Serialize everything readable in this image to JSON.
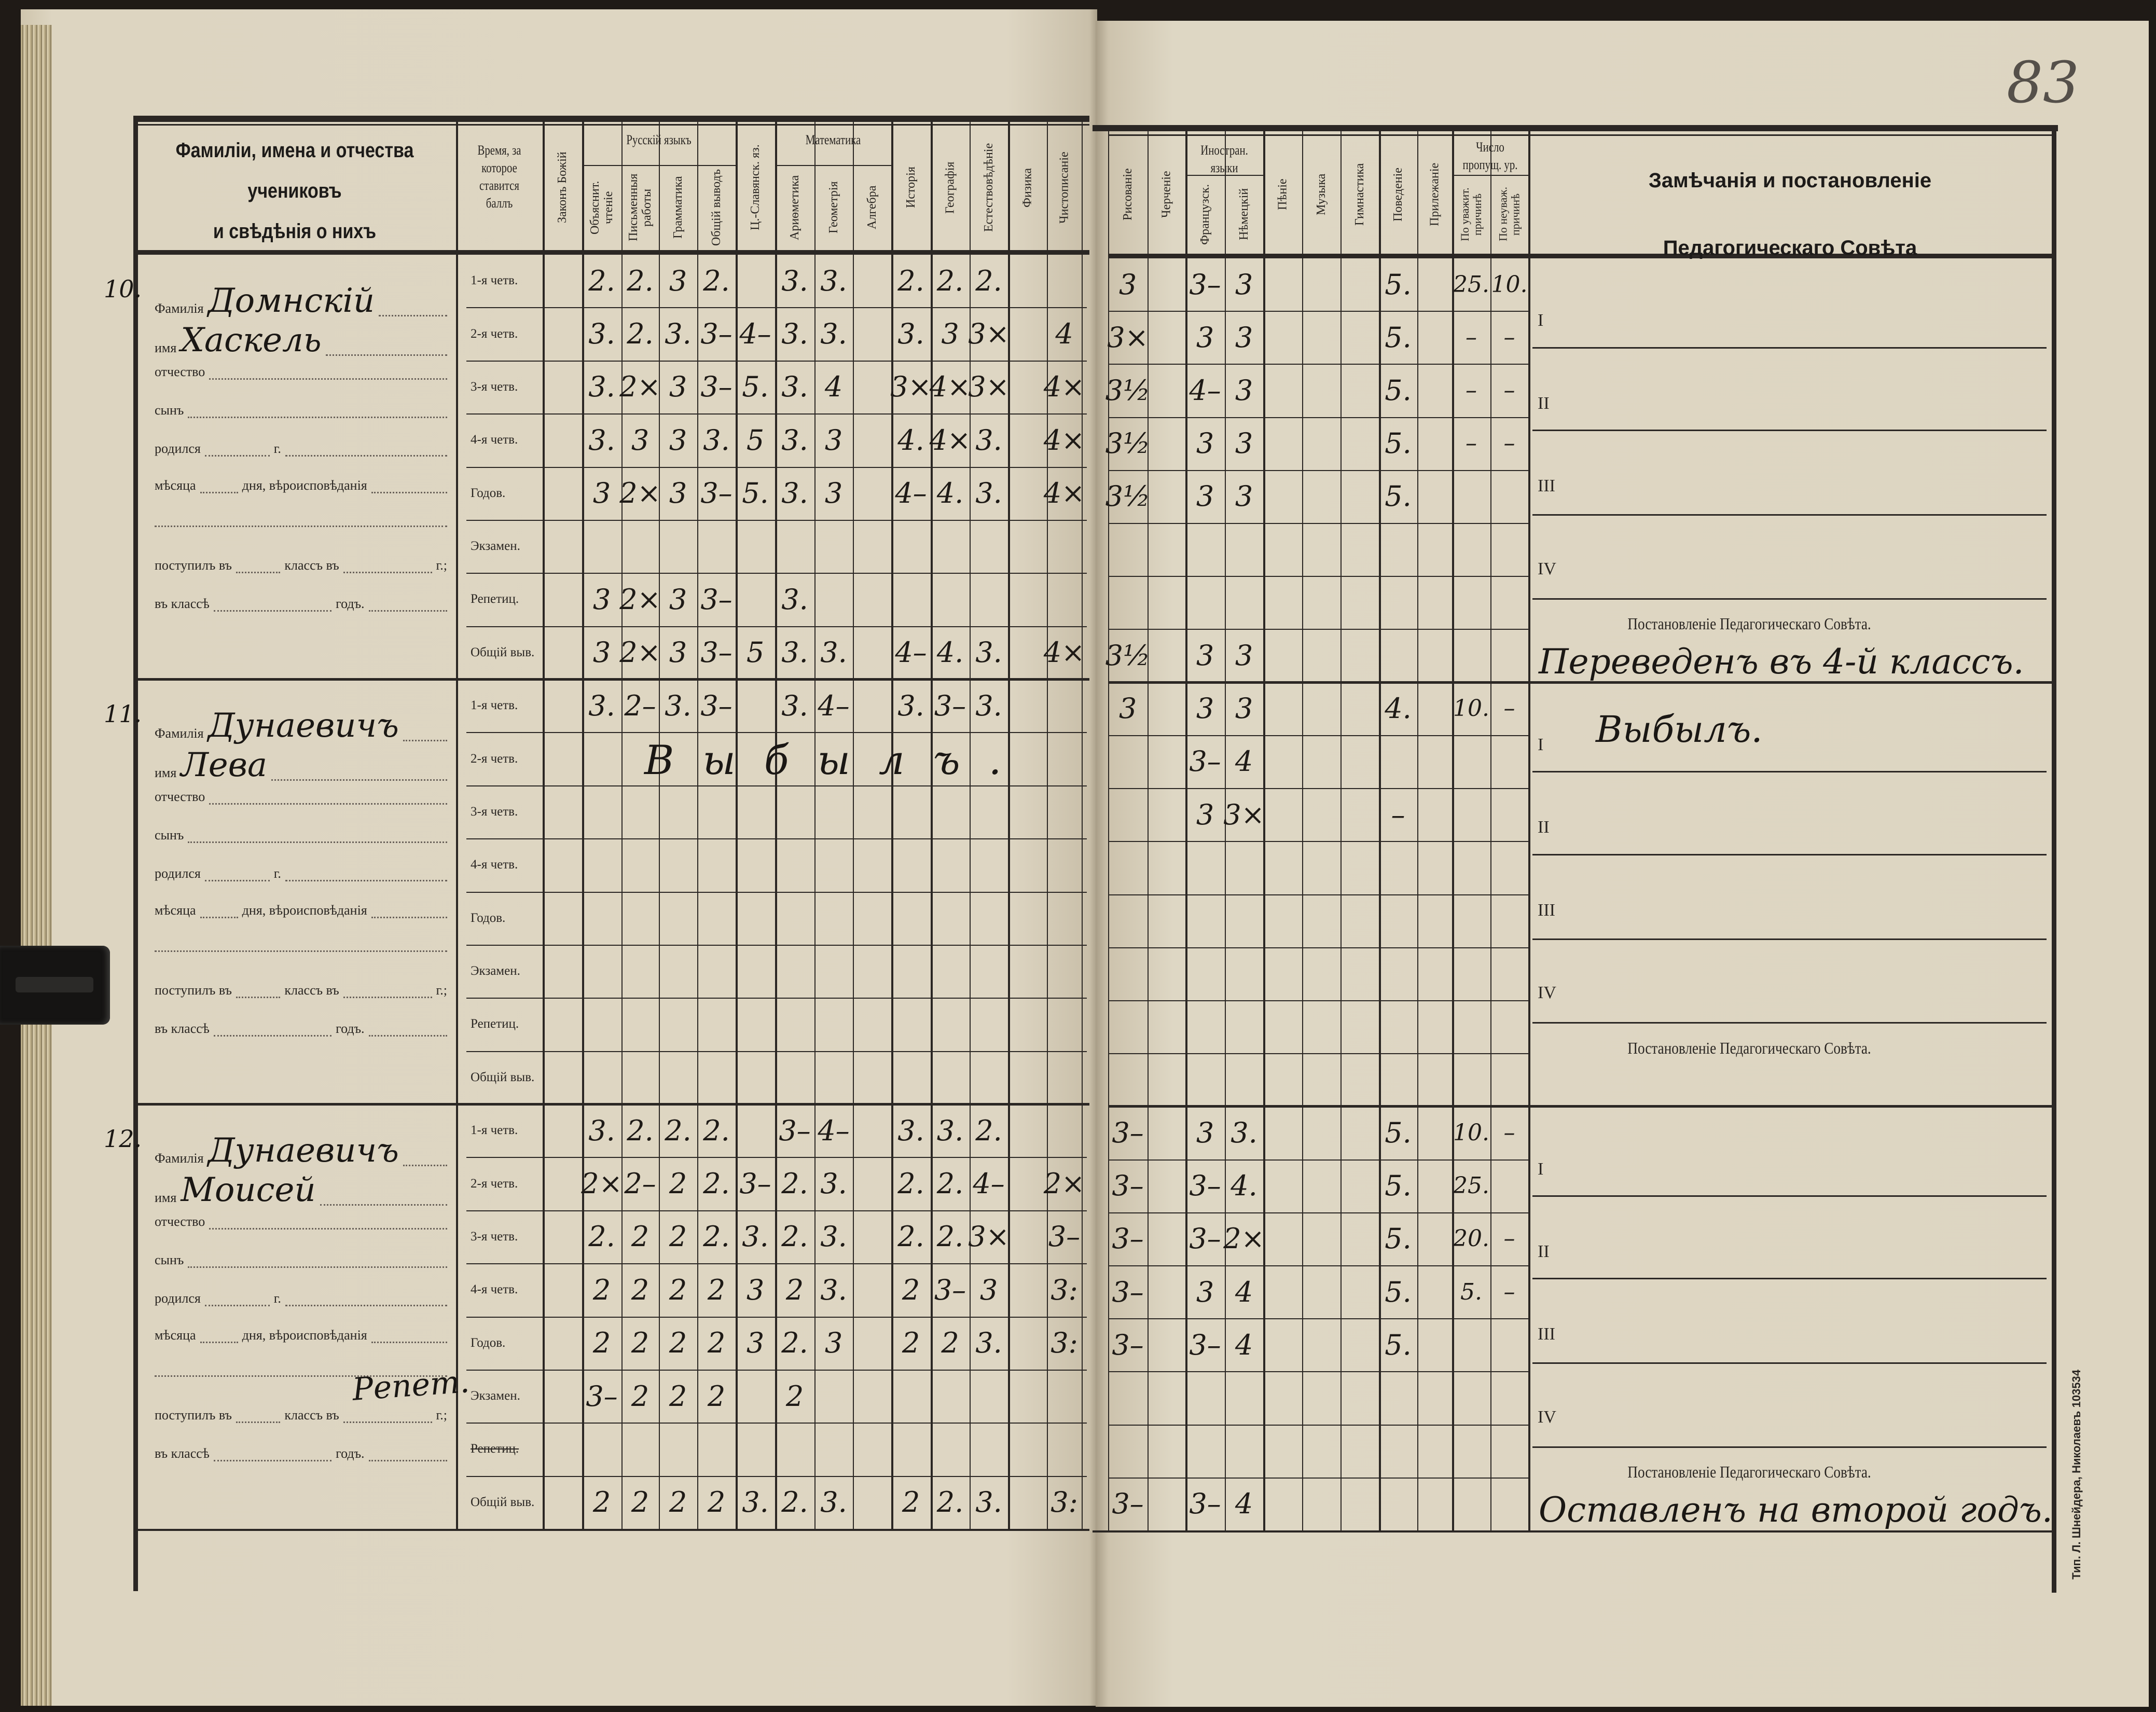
{
  "page_number": "83",
  "printer_mark": "Тип. Л. Шнейдера, Николаевъ 103534",
  "header": {
    "names_col": [
      "Фамиліи, имена и отчества",
      "учениковъ",
      "и свѣдѣнія о нихъ"
    ],
    "time_col": "Время, за которое ставится баллъ",
    "groups": {
      "russian": "Русскій языкъ",
      "math": "Математика",
      "foreign": "Иностран. языки",
      "absences": "Число пропущ. ур."
    },
    "left_subjects": [
      "Законъ Божій",
      "Объяснит. чтеніе",
      "Письменныя работы",
      "Грамматика",
      "Общій выводъ",
      "Ц.-Славянск. яз.",
      "Ариѳметика",
      "Геометрія",
      "Алгебра",
      "Исторія",
      "Географія",
      "Естествовѣдѣніе",
      "Физика",
      "Чистописаніе"
    ],
    "right_subjects": [
      "Рисованіе",
      "Черченіе",
      "Французск.",
      "Нѣмецкій",
      "Пѣніе",
      "Музыка",
      "Гимнастика",
      "Поведеніе",
      "Прилежаніе",
      "По уважит. причинѣ",
      "По неуваж. причинѣ"
    ],
    "remarks": [
      "Замѣчанія и постановленіе",
      "Педагогическаго Совѣта"
    ]
  },
  "period_labels": [
    "1-я четв.",
    "2-я четв.",
    "3-я четв.",
    "4-я четв.",
    "Годов.",
    "Экзамен.",
    "Репетиц.",
    "Общій выв."
  ],
  "info_labels": {
    "surname": "Фамилія",
    "name": "имя",
    "patronymic": "отчество",
    "son": "сынъ",
    "born": "родился",
    "year_abbr": "г.",
    "month": "мѣсяца",
    "day_religion": "дня, вѣроисповѣданія",
    "entered": "поступилъ въ",
    "class_in": "классъ въ",
    "year_abbr2": "г.;",
    "in_class": "въ классѣ",
    "year_word": "годъ."
  },
  "quarter_marks": [
    "I",
    "II",
    "III",
    "IV"
  ],
  "council_label": "Постановленіе Педагогическаго Совѣта.",
  "students": [
    {
      "number": "10.",
      "surname": "Домнскій",
      "name": "Хаскель",
      "inline_note": "",
      "exam_note": "",
      "repetition_struck": false,
      "quarter_remark": "",
      "council_decision": "Переведенъ въ 4-й классъ.",
      "left_grades": [
        [
          "",
          "2.",
          "2.",
          "3",
          "2.",
          "",
          "3.",
          "3.",
          "",
          "2.",
          "2.",
          "2.",
          "",
          ""
        ],
        [
          "",
          "3.",
          "2.",
          "3.",
          "3–",
          "4–",
          "3.",
          "3.",
          "",
          "3.",
          "3",
          "3×",
          "",
          "4"
        ],
        [
          "",
          "3.",
          "2×",
          "3",
          "3–",
          "5.",
          "3.",
          "4",
          "",
          "3×",
          "4×",
          "3×",
          "",
          "4×"
        ],
        [
          "",
          "3.",
          "3",
          "3",
          "3.",
          "5",
          "3.",
          "3",
          "",
          "4.",
          "4×",
          "3.",
          "",
          "4×"
        ],
        [
          "",
          "3",
          "2×",
          "3",
          "3–",
          "5.",
          "3.",
          "3",
          "",
          "4–",
          "4.",
          "3.",
          "",
          "4×"
        ],
        [
          "",
          "",
          "",
          "",
          "",
          "",
          "",
          "",
          "",
          "",
          "",
          "",
          "",
          ""
        ],
        [
          "",
          "3",
          "2×",
          "3",
          "3–",
          "",
          "3.",
          "",
          "",
          "",
          "",
          "",
          "",
          ""
        ],
        [
          "",
          "3",
          "2×",
          "3",
          "3–",
          "5",
          "3.",
          "3.",
          "",
          "4–",
          "4.",
          "3.",
          "",
          "4×"
        ]
      ],
      "right_grades": [
        [
          "3",
          "",
          "3–",
          "3",
          "",
          "",
          "",
          "5.",
          "",
          "25.",
          "10."
        ],
        [
          "3×",
          "",
          "3",
          "3",
          "",
          "",
          "",
          "5.",
          "",
          "–",
          "–"
        ],
        [
          "3½",
          "",
          "4–",
          "3",
          "",
          "",
          "",
          "5.",
          "",
          "–",
          "–"
        ],
        [
          "3½",
          "",
          "3",
          "3",
          "",
          "",
          "",
          "5.",
          "",
          "–",
          "–"
        ],
        [
          "3½",
          "",
          "3",
          "3",
          "",
          "",
          "",
          "5.",
          "",
          "",
          ""
        ],
        [
          "",
          "",
          "",
          "",
          "",
          "",
          "",
          "",
          "",
          "",
          ""
        ],
        [
          "",
          "",
          "",
          "",
          "",
          "",
          "",
          "",
          "",
          "",
          ""
        ],
        [
          "3½",
          "",
          "3",
          "3",
          "",
          "",
          "",
          "",
          "",
          "",
          ""
        ]
      ]
    },
    {
      "number": "11.",
      "surname": "Дунаевичъ",
      "name": "Лева",
      "inline_note": "Выбылъ.",
      "exam_note": "",
      "repetition_struck": false,
      "quarter_remark": "Выбылъ.",
      "council_decision": "",
      "left_grades": [
        [
          "",
          "3.",
          "2–",
          "3.",
          "3–",
          "",
          "3.",
          "4–",
          "",
          "3.",
          "3–",
          "3.",
          "",
          ""
        ],
        [
          "",
          "",
          "",
          "",
          "",
          "",
          "",
          "",
          "",
          "",
          "",
          "",
          "",
          ""
        ],
        [
          "",
          "",
          "",
          "",
          "",
          "",
          "",
          "",
          "",
          "",
          "",
          "",
          "",
          ""
        ],
        [
          "",
          "",
          "",
          "",
          "",
          "",
          "",
          "",
          "",
          "",
          "",
          "",
          "",
          ""
        ],
        [
          "",
          "",
          "",
          "",
          "",
          "",
          "",
          "",
          "",
          "",
          "",
          "",
          "",
          ""
        ],
        [
          "",
          "",
          "",
          "",
          "",
          "",
          "",
          "",
          "",
          "",
          "",
          "",
          "",
          ""
        ],
        [
          "",
          "",
          "",
          "",
          "",
          "",
          "",
          "",
          "",
          "",
          "",
          "",
          "",
          ""
        ],
        [
          "",
          "",
          "",
          "",
          "",
          "",
          "",
          "",
          "",
          "",
          "",
          "",
          "",
          ""
        ]
      ],
      "right_grades": [
        [
          "3",
          "",
          "3",
          "3",
          "",
          "",
          "",
          "4.",
          "",
          "10.",
          "–"
        ],
        [
          "",
          "",
          "3–",
          "4",
          "",
          "",
          "",
          "",
          "",
          "",
          ""
        ],
        [
          "",
          "",
          "3",
          "3×",
          "",
          "",
          "",
          "–",
          "",
          "",
          ""
        ],
        [
          "",
          "",
          "",
          "",
          "",
          "",
          "",
          "",
          "",
          "",
          ""
        ],
        [
          "",
          "",
          "",
          "",
          "",
          "",
          "",
          "",
          "",
          "",
          ""
        ],
        [
          "",
          "",
          "",
          "",
          "",
          "",
          "",
          "",
          "",
          "",
          ""
        ],
        [
          "",
          "",
          "",
          "",
          "",
          "",
          "",
          "",
          "",
          "",
          ""
        ],
        [
          "",
          "",
          "",
          "",
          "",
          "",
          "",
          "",
          "",
          "",
          ""
        ]
      ]
    },
    {
      "number": "12.",
      "surname": "Дунаевичъ",
      "name": "Моисей",
      "inline_note": "",
      "exam_note": "Репет.",
      "repetition_struck": true,
      "quarter_remark": "",
      "council_decision": "Оставленъ на второй годъ.",
      "left_grades": [
        [
          "",
          "3.",
          "2.",
          "2.",
          "2.",
          "",
          "3–",
          "4–",
          "",
          "3.",
          "3.",
          "2.",
          "",
          ""
        ],
        [
          "",
          "2×",
          "2–",
          "2",
          "2.",
          "3–",
          "2.",
          "3.",
          "",
          "2.",
          "2.",
          "4–",
          "",
          "2×"
        ],
        [
          "",
          "2.",
          "2",
          "2",
          "2.",
          "3.",
          "2.",
          "3.",
          "",
          "2.",
          "2.",
          "3×",
          "",
          "3–"
        ],
        [
          "",
          "2",
          "2",
          "2",
          "2",
          "3",
          "2",
          "3.",
          "",
          "2",
          "3–",
          "3",
          "",
          "3:"
        ],
        [
          "",
          "2",
          "2",
          "2",
          "2",
          "3",
          "2.",
          "3",
          "",
          "2",
          "2",
          "3.",
          "",
          "3:"
        ],
        [
          "",
          "3–",
          "2",
          "2",
          "2",
          "",
          "2",
          "",
          "",
          "",
          "",
          "",
          "",
          ""
        ],
        [
          "",
          "",
          "",
          "",
          "",
          "",
          "",
          "",
          "",
          "",
          "",
          "",
          "",
          ""
        ],
        [
          "",
          "2",
          "2",
          "2",
          "2",
          "3.",
          "2.",
          "3.",
          "",
          "2",
          "2.",
          "3.",
          "",
          "3:"
        ]
      ],
      "right_grades": [
        [
          "3–",
          "",
          "3",
          "3.",
          "",
          "",
          "",
          "5.",
          "",
          "10.",
          "–"
        ],
        [
          "3–",
          "",
          "3–",
          "4.",
          "",
          "",
          "",
          "5.",
          "",
          "25.",
          ""
        ],
        [
          "3–",
          "",
          "3–",
          "2×",
          "",
          "",
          "",
          "5.",
          "",
          "20.",
          "–"
        ],
        [
          "3–",
          "",
          "3",
          "4",
          "",
          "",
          "",
          "5.",
          "",
          "5.",
          "–"
        ],
        [
          "3–",
          "",
          "3–",
          "4",
          "",
          "",
          "",
          "5.",
          "",
          "",
          ""
        ],
        [
          "",
          "",
          "",
          "",
          "",
          "",
          "",
          "",
          "",
          "",
          ""
        ],
        [
          "",
          "",
          "",
          "",
          "",
          "",
          "",
          "",
          "",
          "",
          ""
        ],
        [
          "3–",
          "",
          "3–",
          "4",
          "",
          "",
          "",
          "",
          "",
          "",
          ""
        ]
      ]
    }
  ]
}
